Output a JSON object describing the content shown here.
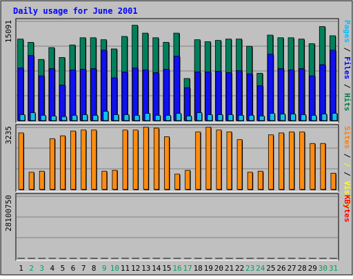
{
  "chart_data": {
    "type": "bar",
    "title": "Daily usage for June 2001",
    "categories": [
      "1",
      "2",
      "3",
      "4",
      "5",
      "6",
      "7",
      "8",
      "9",
      "10",
      "11",
      "12",
      "13",
      "14",
      "15",
      "16",
      "17",
      "18",
      "19",
      "20",
      "21",
      "22",
      "23",
      "24",
      "25",
      "26",
      "27",
      "28",
      "29",
      "30",
      "31"
    ],
    "weekend_days": [
      "2",
      "3",
      "9",
      "10",
      "16",
      "17",
      "23",
      "24",
      "30",
      "31"
    ],
    "panels": [
      {
        "name": "hits-files-pages",
        "axis_max_label": "15091",
        "ylim": [
          0,
          15091
        ],
        "legend": [
          {
            "label": "Pages",
            "color": "#00c0ff"
          },
          {
            "label": "Files",
            "color": "#0000ff"
          },
          {
            "label": "Hits",
            "color": "#008040"
          }
        ],
        "series": [
          {
            "name": "Hits",
            "color": "#00805c",
            "values": [
              12400,
              11900,
              9300,
              11100,
              9600,
              11500,
              12600,
              12600,
              12300,
              10900,
              12800,
              14500,
              13300,
              12600,
              11900,
              13300,
              6400,
              12300,
              12000,
              12200,
              12400,
              12400,
              11300,
              7200,
              13000,
              12600,
              12600,
              12400,
              11700,
              14300,
              12900
            ]
          },
          {
            "name": "Files",
            "color": "#1010f0",
            "values": [
              8000,
              9900,
              6800,
              7900,
              5400,
              7700,
              7800,
              7900,
              10700,
              6500,
              7400,
              8000,
              7700,
              7300,
              7800,
              9800,
              5000,
              7400,
              7400,
              7500,
              7300,
              7600,
              7100,
              5300,
              10100,
              7900,
              7700,
              7900,
              6800,
              8500,
              10700
            ]
          },
          {
            "name": "Pages",
            "color": "#10c0f0",
            "values": [
              900,
              1200,
              800,
              700,
              600,
              800,
              900,
              800,
              1400,
              900,
              900,
              800,
              1100,
              800,
              800,
              1100,
              700,
              1200,
              900,
              900,
              900,
              800,
              800,
              700,
              1100,
              1000,
              1000,
              900,
              800,
              1000,
              1100
            ]
          }
        ]
      },
      {
        "name": "visits-sites",
        "axis_max_label": "3235",
        "ylim": [
          0,
          3235
        ],
        "legend": [
          {
            "label": "Sites",
            "color": "#ff8000"
          },
          {
            "label": "/",
            "color": "#ffff00"
          },
          {
            "label": "Visits",
            "color": "#ffff00"
          }
        ],
        "series": [
          {
            "name": "Sites",
            "color": "#ff8c10",
            "values": [
              2950,
              900,
              950,
              2650,
              2800,
              3050,
              3100,
              3100,
              950,
              1000,
              3100,
              3100,
              3250,
              3200,
              2750,
              800,
              1000,
              3000,
              3250,
              3100,
              3000,
              2600,
              900,
              950,
              2850,
              2950,
              3000,
              3000,
              2400,
              2400,
              850
            ]
          }
        ]
      },
      {
        "name": "kbytes",
        "axis_max_label": "28100750",
        "ylim": [
          0,
          28100750
        ],
        "legend": [
          {
            "label": "KBytes",
            "color": "#ff0000"
          }
        ],
        "series": [
          {
            "name": "KBytes",
            "color": "#ff2020",
            "values": [
              26500,
              25500,
              20000,
              24000,
              25000,
              26000,
              26500,
              27500,
              26000,
              20500,
              26500,
              27000,
              27000,
              26500,
              27000,
              24500,
              14000,
              26500,
              27500,
              27000,
              26500,
              27000,
              25500,
              18500,
              26500,
              27000,
              27500,
              25500,
              26500,
              25500,
              25000
            ]
          }
        ]
      }
    ]
  }
}
